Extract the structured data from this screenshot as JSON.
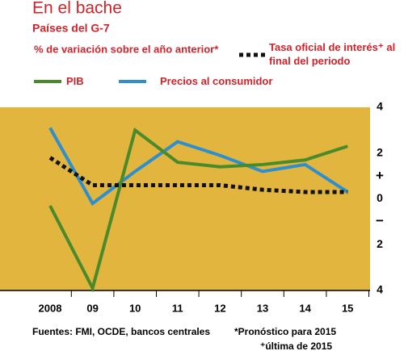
{
  "chart_data": {
    "type": "line",
    "title": "En el bache",
    "subtitle": "Países del G-7",
    "legend_title": "% de variación sobre el año anterior*",
    "categories": [
      "2008",
      "09",
      "10",
      "11",
      "12",
      "13",
      "14",
      "15"
    ],
    "series": [
      {
        "name": "Tasa oficial de interés⁺ al final del periodo",
        "color": "#111111",
        "dashed": true,
        "values": [
          1.8,
          0.6,
          0.6,
          0.6,
          0.6,
          0.4,
          0.3,
          0.3
        ]
      },
      {
        "name": "PIB",
        "color": "#4a8a2a",
        "values": [
          -0.3,
          -3.9,
          3.0,
          1.6,
          1.4,
          1.5,
          1.7,
          2.3
        ]
      },
      {
        "name": "Precios al consumidor",
        "color": "#2f8fce",
        "values": [
          3.1,
          -0.2,
          1.2,
          2.5,
          1.9,
          1.2,
          1.5,
          0.3
        ]
      }
    ],
    "ylim": [
      -4,
      4
    ],
    "yticks": [
      {
        "value": -4,
        "label": "4"
      },
      {
        "value": -2,
        "label": "2"
      },
      0,
      2,
      4
    ],
    "y_sign_labels": {
      "plus": "+",
      "minus": "−"
    },
    "background": "#e1b53e",
    "source": "Fuentes: FMI, OCDE, bancos centrales",
    "notes": [
      "*Pronóstico para 2015",
      "⁺última de 2015"
    ]
  }
}
